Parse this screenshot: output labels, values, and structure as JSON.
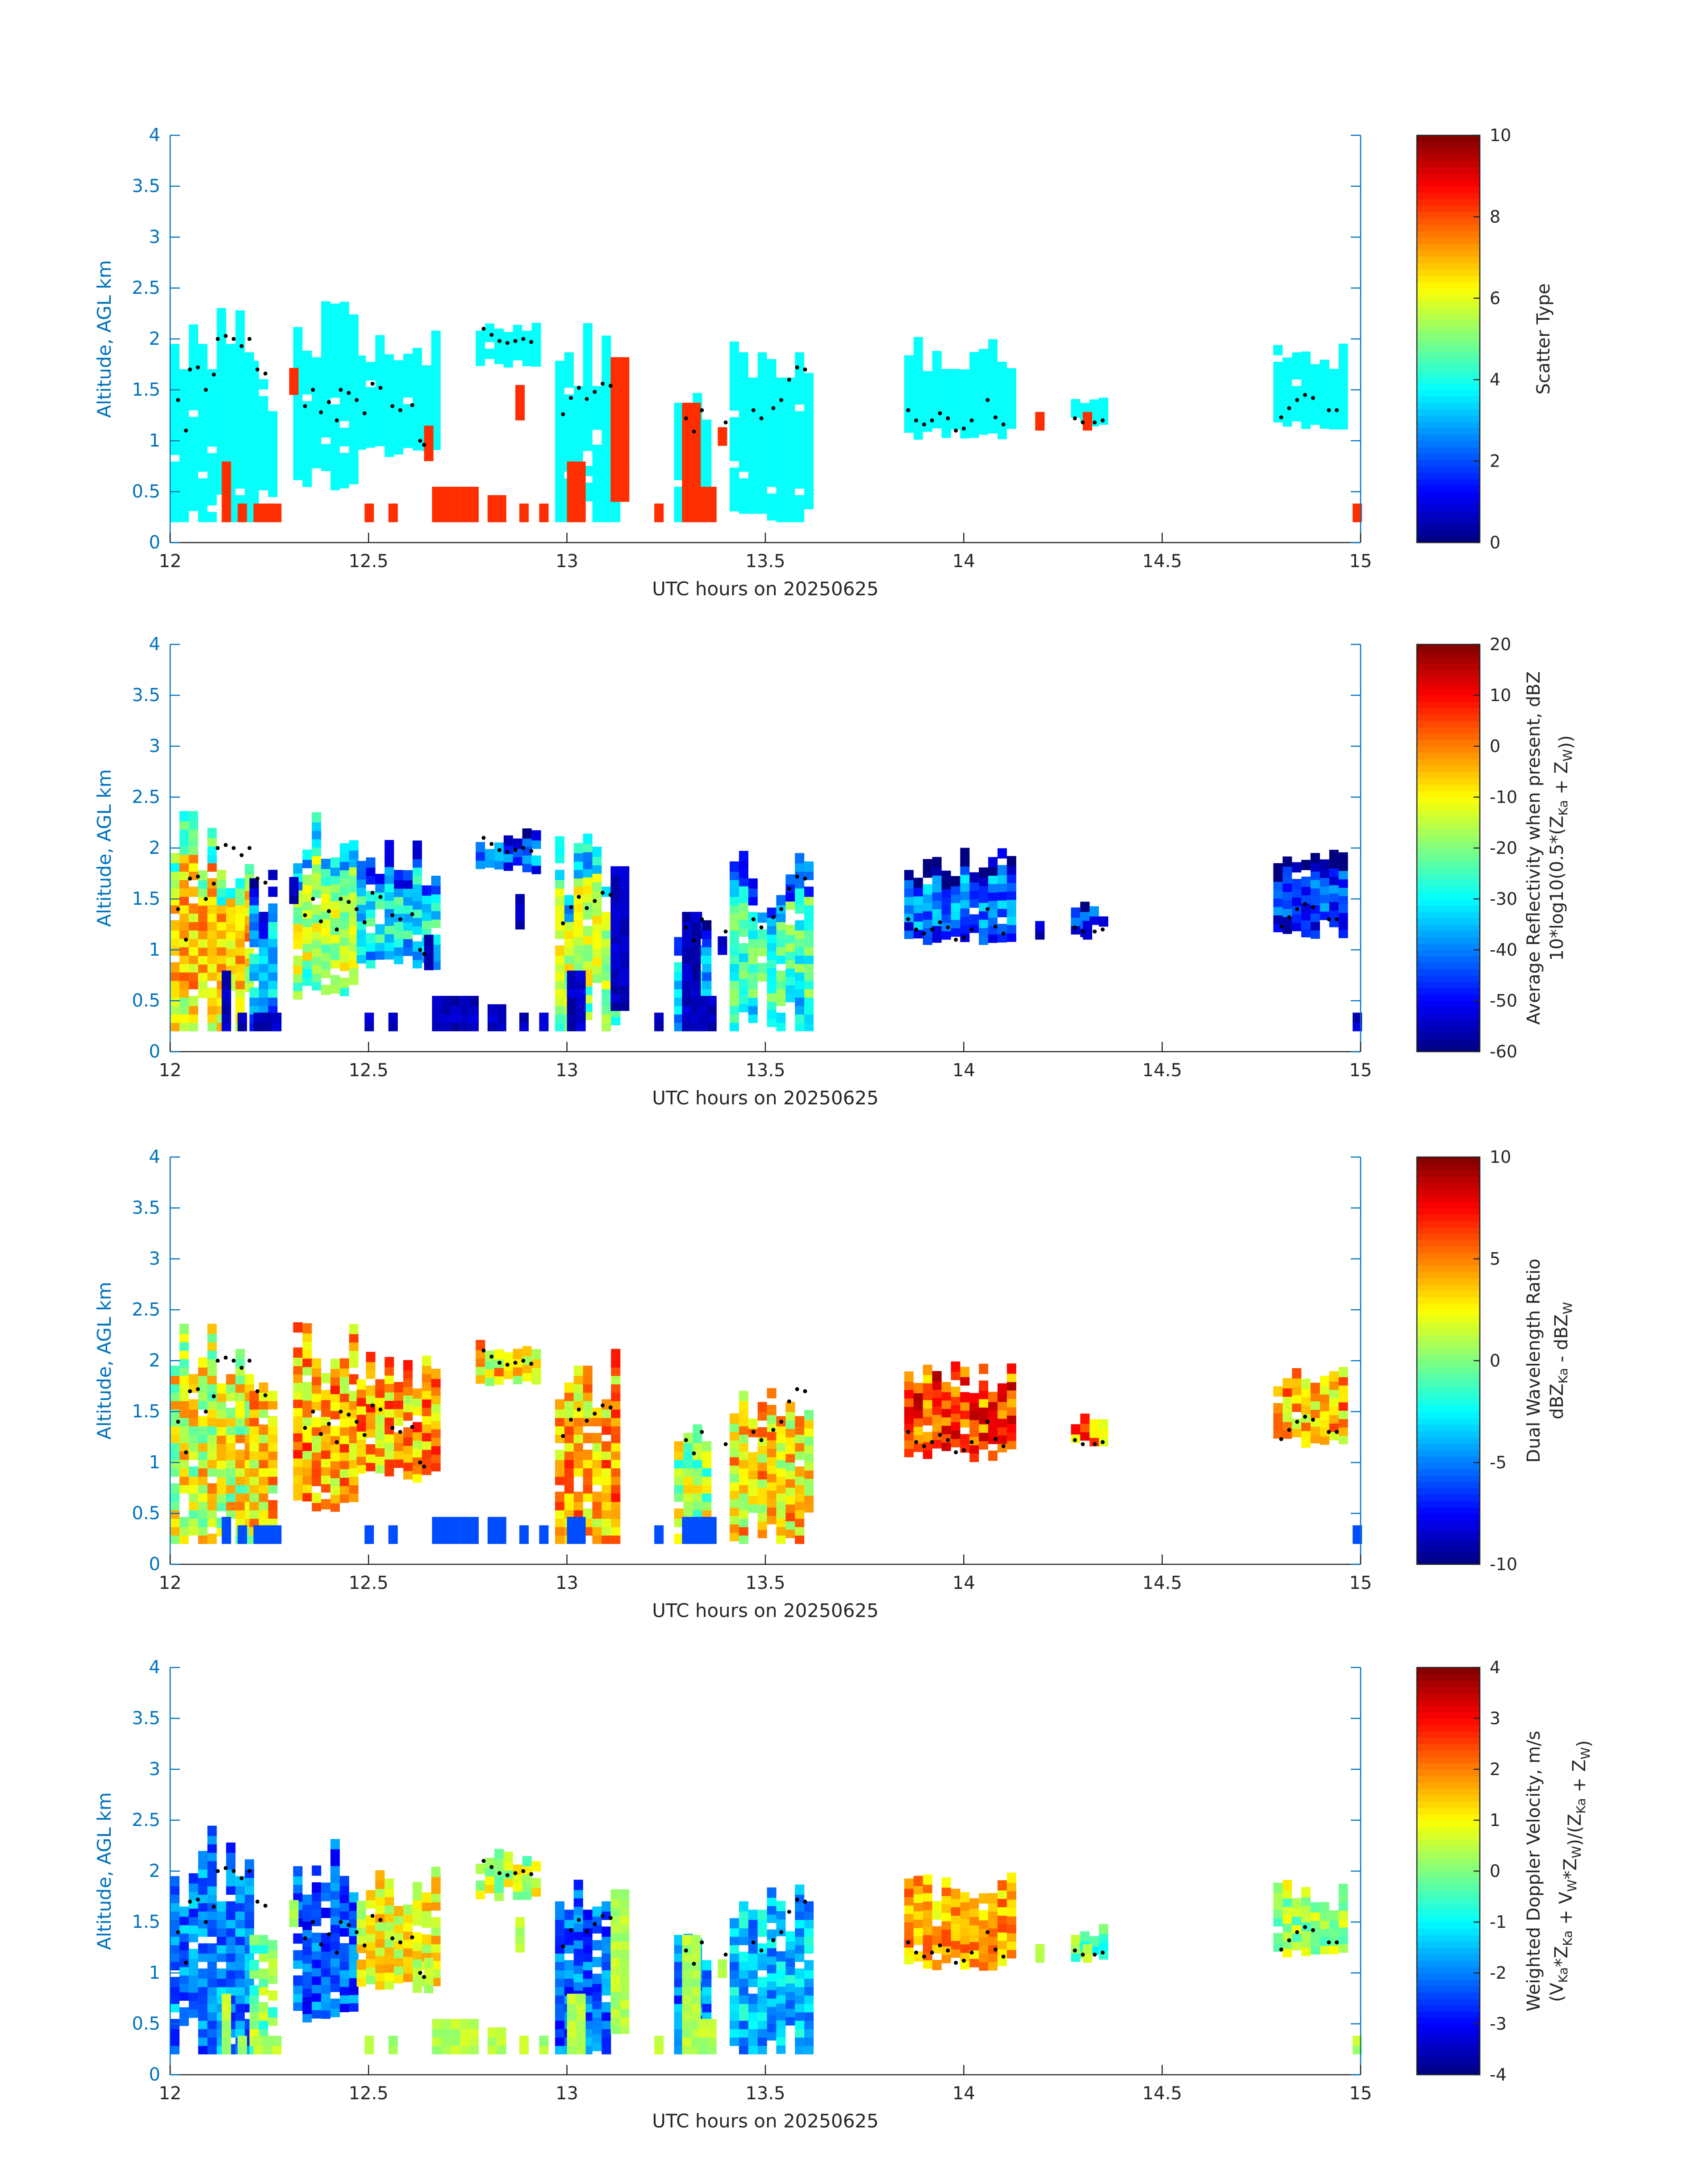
{
  "colormap": "jet",
  "colors": {
    "axis": "#0072bd",
    "text": "#262626",
    "marker": "#000000",
    "background": "#ffffff"
  },
  "chart_data": [
    {
      "type": "heatmap",
      "id": "scatter-type",
      "xlabel": "UTC hours on 20250625",
      "ylabel": "Altitude, AGL km",
      "xlim": [
        12,
        15
      ],
      "ylim": [
        0,
        4
      ],
      "xticks": [
        "12",
        "12.5",
        "13",
        "13.5",
        "14",
        "14.5",
        "15"
      ],
      "yticks": [
        "0",
        "0.5",
        "1",
        "1.5",
        "2",
        "2.5",
        "3",
        "3.5",
        "4"
      ],
      "colorbar": {
        "label": "Scatter Type",
        "sublabel": "",
        "clim": [
          0,
          10
        ],
        "ticks": [
          "0",
          "2",
          "4",
          "6",
          "8",
          "10"
        ]
      },
      "note_values": "cyan cells ~3.8 (cloud); orange-red cells ~8.3 (near-surface clutter/insects)"
    },
    {
      "type": "heatmap",
      "id": "avg-reflectivity",
      "xlabel": "UTC hours on 20250625",
      "ylabel": "Altitude, AGL km",
      "xlim": [
        12,
        15
      ],
      "ylim": [
        0,
        4
      ],
      "xticks": [
        "12",
        "12.5",
        "13",
        "13.5",
        "14",
        "14.5",
        "15"
      ],
      "yticks": [
        "0",
        "0.5",
        "1",
        "1.5",
        "2",
        "2.5",
        "3",
        "3.5",
        "4"
      ],
      "colorbar": {
        "label": "Average Reflectivity when present, dBZ",
        "sublabel": "10*log10(0.5*(Z_Ka + Z_W))",
        "clim": [
          -60,
          20
        ],
        "ticks": [
          "-60",
          "-50",
          "-40",
          "-30",
          "-20",
          "-10",
          "0",
          "10",
          "20"
        ]
      }
    },
    {
      "type": "heatmap",
      "id": "dwr",
      "xlabel": "UTC hours on 20250625",
      "ylabel": "Altitude, AGL km",
      "xlim": [
        12,
        15
      ],
      "ylim": [
        0,
        4
      ],
      "xticks": [
        "12",
        "12.5",
        "13",
        "13.5",
        "14",
        "14.5",
        "15"
      ],
      "yticks": [
        "0",
        "0.5",
        "1",
        "1.5",
        "2",
        "2.5",
        "3",
        "3.5",
        "4"
      ],
      "colorbar": {
        "label": "Dual Wavelength Ratio",
        "sublabel": "dBZ_Ka - dBZ_W",
        "clim": [
          -10,
          10
        ],
        "ticks": [
          "-10",
          "-5",
          "0",
          "5",
          "10"
        ]
      }
    },
    {
      "type": "heatmap",
      "id": "doppler-velocity",
      "xlabel": "UTC hours on 20250625",
      "ylabel": "Altitude, AGL km",
      "xlim": [
        12,
        15
      ],
      "ylim": [
        0,
        4
      ],
      "xticks": [
        "12",
        "12.5",
        "13",
        "13.5",
        "14",
        "14.5",
        "15"
      ],
      "yticks": [
        "0",
        "0.5",
        "1",
        "1.5",
        "2",
        "2.5",
        "3",
        "3.5",
        "4"
      ],
      "colorbar": {
        "label": "Weighted Doppler Velocity, m/s",
        "sublabel": "(V_Ka*Z_Ka + V_W*Z_W)/(Z_Ka + Z_W)",
        "clim": [
          -4,
          4
        ],
        "ticks": [
          "-4",
          "-3",
          "-2",
          "-1",
          "0",
          "1",
          "2",
          "3",
          "4"
        ]
      }
    }
  ],
  "cloud_blocks": [
    {
      "x0": 12.0,
      "x1": 12.2,
      "base": 0.2,
      "top": 2.4,
      "dbz": -5,
      "dwr": 2,
      "vel": -2.0
    },
    {
      "x0": 12.2,
      "x1": 12.25,
      "base": 0.2,
      "top": 1.75,
      "dbz": -35,
      "dwr": 3,
      "vel": 0.0
    },
    {
      "x0": 12.31,
      "x1": 12.47,
      "base": 0.5,
      "top": 2.35,
      "dbz": -15,
      "dwr": 4,
      "vel": -2.3
    },
    {
      "x0": 12.47,
      "x1": 12.67,
      "base": 0.8,
      "top": 2.05,
      "dbz": -30,
      "dwr": 4,
      "vel": 1.0
    },
    {
      "x0": 12.77,
      "x1": 12.93,
      "base": 1.7,
      "top": 2.15,
      "dbz": -40,
      "dwr": 3,
      "vel": 0.5
    },
    {
      "x0": 12.97,
      "x1": 13.13,
      "base": 0.2,
      "top": 2.1,
      "dbz": -15,
      "dwr": 4,
      "vel": -2.2
    },
    {
      "x0": 13.27,
      "x1": 13.36,
      "base": 0.2,
      "top": 1.4,
      "dbz": -35,
      "dwr": 1,
      "vel": -2.0
    },
    {
      "x0": 13.41,
      "x1": 13.61,
      "base": 0.2,
      "top": 1.9,
      "dbz": -25,
      "dwr": 3,
      "vel": -1.5
    },
    {
      "x0": 13.85,
      "x1": 14.12,
      "base": 1.0,
      "top": 1.95,
      "dbz": -40,
      "dwr": 6,
      "vel": 1.6
    },
    {
      "x0": 14.27,
      "x1": 14.36,
      "base": 1.1,
      "top": 1.4,
      "dbz": -45,
      "dwr": 5,
      "vel": -0.2
    },
    {
      "x0": 14.78,
      "x1": 14.95,
      "base": 1.1,
      "top": 1.9,
      "dbz": -45,
      "dwr": 4,
      "vel": 0.3
    }
  ],
  "clutter_blocks": [
    {
      "x0": 12.13,
      "x1": 12.15,
      "base": 0.2,
      "top": 0.75
    },
    {
      "x0": 12.17,
      "x1": 12.18,
      "base": 0.2,
      "top": 0.3
    },
    {
      "x0": 12.21,
      "x1": 12.27,
      "base": 0.2,
      "top": 0.3
    },
    {
      "x0": 12.3,
      "x1": 12.32,
      "base": 1.45,
      "top": 1.65
    },
    {
      "x0": 12.49,
      "x1": 12.5,
      "base": 0.2,
      "top": 0.3
    },
    {
      "x0": 12.55,
      "x1": 12.57,
      "base": 0.2,
      "top": 0.3
    },
    {
      "x0": 12.64,
      "x1": 12.66,
      "base": 0.8,
      "top": 1.1
    },
    {
      "x0": 12.66,
      "x1": 12.77,
      "base": 0.2,
      "top": 0.45
    },
    {
      "x0": 12.8,
      "x1": 12.84,
      "base": 0.2,
      "top": 0.4
    },
    {
      "x0": 12.87,
      "x1": 12.88,
      "base": 1.2,
      "top": 1.45
    },
    {
      "x0": 12.88,
      "x1": 12.9,
      "base": 0.2,
      "top": 0.35
    },
    {
      "x0": 12.93,
      "x1": 12.94,
      "base": 0.2,
      "top": 0.3
    },
    {
      "x0": 13.0,
      "x1": 13.04,
      "base": 0.2,
      "top": 0.75
    },
    {
      "x0": 13.11,
      "x1": 13.15,
      "base": 0.4,
      "top": 1.75
    },
    {
      "x0": 13.22,
      "x1": 13.24,
      "base": 0.2,
      "top": 0.3
    },
    {
      "x0": 13.29,
      "x1": 13.32,
      "base": 0.2,
      "top": 1.3
    },
    {
      "x0": 13.33,
      "x1": 13.36,
      "base": 0.2,
      "top": 0.5
    },
    {
      "x0": 13.38,
      "x1": 13.4,
      "base": 0.95,
      "top": 1.1
    },
    {
      "x0": 14.18,
      "x1": 14.2,
      "base": 1.1,
      "top": 1.2
    },
    {
      "x0": 14.3,
      "x1": 14.32,
      "base": 1.1,
      "top": 1.25
    },
    {
      "x0": 14.98,
      "x1": 15.0,
      "base": 0.2,
      "top": 0.3
    }
  ],
  "marker_points": [
    [
      12.02,
      1.4
    ],
    [
      12.04,
      1.1
    ],
    [
      12.05,
      1.7
    ],
    [
      12.07,
      1.72
    ],
    [
      12.09,
      1.5
    ],
    [
      12.11,
      1.65
    ],
    [
      12.12,
      2.0
    ],
    [
      12.14,
      2.03
    ],
    [
      12.16,
      2.0
    ],
    [
      12.18,
      1.93
    ],
    [
      12.2,
      2.0
    ],
    [
      12.22,
      1.7
    ],
    [
      12.24,
      1.66
    ],
    [
      12.34,
      1.34
    ],
    [
      12.36,
      1.5
    ],
    [
      12.38,
      1.28
    ],
    [
      12.4,
      1.38
    ],
    [
      12.42,
      1.2
    ],
    [
      12.43,
      1.5
    ],
    [
      12.45,
      1.47
    ],
    [
      12.47,
      1.4
    ],
    [
      12.49,
      1.27
    ],
    [
      12.51,
      1.56
    ],
    [
      12.53,
      1.52
    ],
    [
      12.56,
      1.34
    ],
    [
      12.58,
      1.3
    ],
    [
      12.61,
      1.35
    ],
    [
      12.63,
      1.0
    ],
    [
      12.64,
      0.96
    ],
    [
      12.79,
      2.1
    ],
    [
      12.81,
      2.04
    ],
    [
      12.83,
      1.98
    ],
    [
      12.85,
      1.96
    ],
    [
      12.87,
      1.98
    ],
    [
      12.89,
      2.0
    ],
    [
      12.91,
      1.97
    ],
    [
      12.99,
      1.26
    ],
    [
      13.01,
      1.42
    ],
    [
      13.03,
      1.52
    ],
    [
      13.05,
      1.41
    ],
    [
      13.07,
      1.48
    ],
    [
      13.09,
      1.56
    ],
    [
      13.11,
      1.54
    ],
    [
      13.3,
      1.22
    ],
    [
      13.32,
      1.09
    ],
    [
      13.34,
      1.3
    ],
    [
      13.4,
      1.18
    ],
    [
      13.47,
      1.3
    ],
    [
      13.49,
      1.22
    ],
    [
      13.52,
      1.32
    ],
    [
      13.54,
      1.4
    ],
    [
      13.56,
      1.6
    ],
    [
      13.58,
      1.72
    ],
    [
      13.6,
      1.7
    ],
    [
      13.86,
      1.3
    ],
    [
      13.88,
      1.2
    ],
    [
      13.9,
      1.16
    ],
    [
      13.92,
      1.2
    ],
    [
      13.94,
      1.27
    ],
    [
      13.96,
      1.22
    ],
    [
      13.98,
      1.1
    ],
    [
      14.0,
      1.12
    ],
    [
      14.02,
      1.2
    ],
    [
      14.06,
      1.4
    ],
    [
      14.08,
      1.23
    ],
    [
      14.1,
      1.16
    ],
    [
      14.28,
      1.22
    ],
    [
      14.3,
      1.18
    ],
    [
      14.33,
      1.18
    ],
    [
      14.35,
      1.2
    ],
    [
      14.8,
      1.23
    ],
    [
      14.82,
      1.32
    ],
    [
      14.84,
      1.4
    ],
    [
      14.86,
      1.45
    ],
    [
      14.88,
      1.42
    ],
    [
      14.92,
      1.3
    ],
    [
      14.94,
      1.3
    ]
  ]
}
